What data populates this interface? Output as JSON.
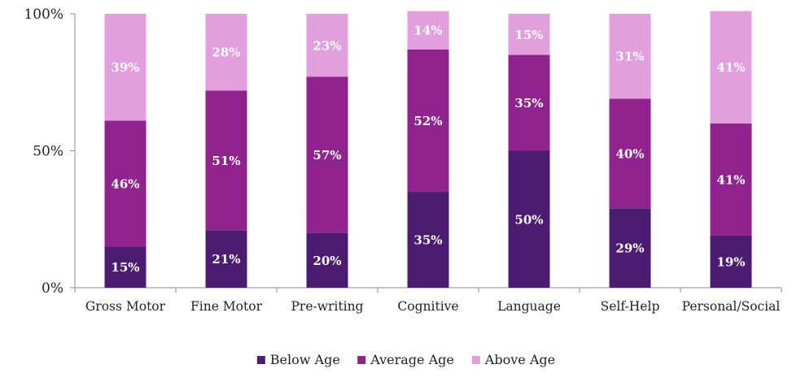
{
  "chart_data": {
    "type": "bar",
    "stacked": true,
    "percent_stacked": true,
    "categories": [
      "Gross Motor",
      "Fine Motor",
      "Pre-writing",
      "Cognitive",
      "Language",
      "Self-Help",
      "Personal/Social"
    ],
    "series": [
      {
        "name": "Below Age",
        "color": "#4b1c72",
        "values": [
          15,
          21,
          20,
          35,
          50,
          29,
          19
        ],
        "labels": [
          "15%",
          "21%",
          "20%",
          "35%",
          "50%",
          "29%",
          "19%"
        ]
      },
      {
        "name": "Average Age",
        "color": "#90238e",
        "values": [
          46,
          51,
          57,
          52,
          35,
          40,
          41
        ],
        "labels": [
          "46%",
          "51%",
          "57%",
          "52%",
          "35%",
          "40%",
          "41%"
        ]
      },
      {
        "name": "Above Age",
        "color": "#e19fde",
        "values": [
          39,
          28,
          23,
          14,
          15,
          31,
          41
        ],
        "labels": [
          "39%",
          "28%",
          "23%",
          "14%",
          "15%",
          "31%",
          "41%"
        ]
      }
    ],
    "y_ticks": [
      "0%",
      "50%",
      "100%"
    ],
    "ylim": [
      0,
      100
    ],
    "y_tick_values": [
      0,
      50,
      100
    ],
    "title": "",
    "xlabel": "",
    "ylabel": "",
    "grid": false,
    "legend_position": "bottom"
  }
}
